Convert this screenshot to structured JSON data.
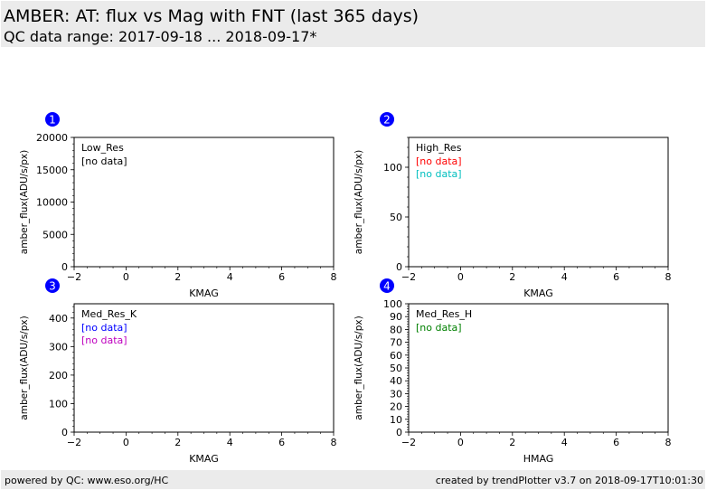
{
  "header": {
    "title": "AMBER: AT: flux vs Mag with FNT (last 365 days)",
    "subtitle": "QC data range: 2017-09-18 ... 2018-09-17*"
  },
  "footer": {
    "left": "powered by QC: www.eso.org/HC",
    "right": "created by trendPlotter v3.7 on 2018-09-17T10:01:30"
  },
  "colors": {
    "marker": "#0000ff",
    "black": "#000000",
    "red": "#ff0000",
    "cyan": "#00bfbf",
    "blue": "#0000ff",
    "magenta": "#bf00bf",
    "green": "#008000"
  },
  "chart_data": [
    {
      "type": "scatter",
      "panel_number": "1",
      "title": "Low_Res",
      "xlabel": "KMAG",
      "ylabel": "amber_flux(ADU/s/px)",
      "xlim": [
        -2,
        8
      ],
      "ylim": [
        0,
        20000
      ],
      "x_ticks": [
        -2,
        0,
        2,
        4,
        6,
        8
      ],
      "x_tick_labels": [
        "−2",
        "0",
        "2",
        "4",
        "6",
        "8"
      ],
      "y_ticks": [
        0,
        5000,
        10000,
        15000,
        20000
      ],
      "y_tick_labels": [
        "0",
        "5000",
        "10000",
        "15000",
        "20000"
      ],
      "annotations": [
        {
          "text": "[no data]",
          "color": "#000000"
        }
      ],
      "series": []
    },
    {
      "type": "scatter",
      "panel_number": "2",
      "title": "High_Res",
      "xlabel": "KMAG",
      "ylabel": "amber_flux(ADU/s/px)",
      "xlim": [
        -2,
        8
      ],
      "ylim": [
        0,
        130
      ],
      "x_ticks": [
        -2,
        0,
        2,
        4,
        6,
        8
      ],
      "x_tick_labels": [
        "−2",
        "0",
        "2",
        "4",
        "6",
        "8"
      ],
      "y_ticks": [
        0,
        50,
        100
      ],
      "y_tick_labels": [
        "0",
        "50",
        "100"
      ],
      "annotations": [
        {
          "text": "[no data]",
          "color": "#ff0000"
        },
        {
          "text": "[no data]",
          "color": "#00bfbf"
        }
      ],
      "series": []
    },
    {
      "type": "scatter",
      "panel_number": "3",
      "title": "Med_Res_K",
      "xlabel": "KMAG",
      "ylabel": "amber_flux(ADU/s/px)",
      "xlim": [
        -2,
        8
      ],
      "ylim": [
        0,
        450
      ],
      "x_ticks": [
        -2,
        0,
        2,
        4,
        6,
        8
      ],
      "x_tick_labels": [
        "−2",
        "0",
        "2",
        "4",
        "6",
        "8"
      ],
      "y_ticks": [
        0,
        100,
        200,
        300,
        400
      ],
      "y_tick_labels": [
        "0",
        "100",
        "200",
        "300",
        "400"
      ],
      "annotations": [
        {
          "text": "[no data]",
          "color": "#0000ff"
        },
        {
          "text": "[no data]",
          "color": "#bf00bf"
        }
      ],
      "series": []
    },
    {
      "type": "scatter",
      "panel_number": "4",
      "title": "Med_Res_H",
      "xlabel": "HMAG",
      "ylabel": "amber_flux(ADU/s/px)",
      "xlim": [
        -2,
        8
      ],
      "ylim": [
        0,
        100
      ],
      "x_ticks": [
        -2,
        0,
        2,
        4,
        6,
        8
      ],
      "x_tick_labels": [
        "−2",
        "0",
        "2",
        "4",
        "6",
        "8"
      ],
      "y_ticks": [
        0,
        10,
        20,
        30,
        40,
        50,
        60,
        70,
        80,
        90,
        100
      ],
      "y_tick_labels": [
        "0",
        "10",
        "20",
        "30",
        "40",
        "50",
        "60",
        "70",
        "80",
        "90",
        "100"
      ],
      "annotations": [
        {
          "text": "[no data]",
          "color": "#008000"
        }
      ],
      "series": []
    }
  ]
}
